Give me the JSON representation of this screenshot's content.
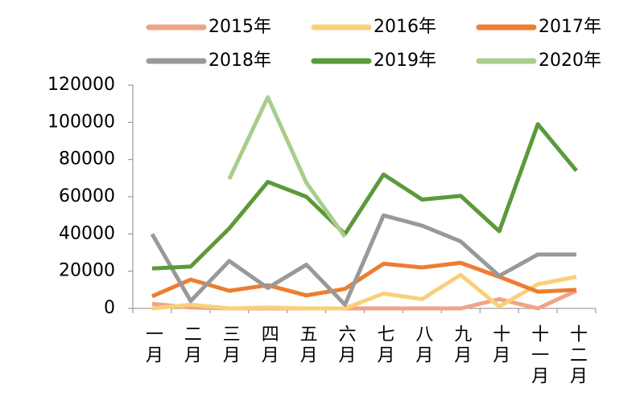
{
  "chart_data": {
    "type": "line",
    "categories": [
      "一月",
      "二月",
      "三月",
      "四月",
      "五月",
      "六月",
      "七月",
      "八月",
      "九月",
      "十月",
      "十一月",
      "十二月"
    ],
    "series": [
      {
        "name": "2015年",
        "color": "#f0a486",
        "values": [
          2500,
          500,
          0,
          0,
          0,
          0,
          0,
          0,
          0,
          5000,
          0,
          9500
        ]
      },
      {
        "name": "2016年",
        "color": "#f9d07a",
        "values": [
          0,
          2000,
          0,
          500,
          0,
          0,
          8000,
          5000,
          18000,
          1000,
          13000,
          17000
        ]
      },
      {
        "name": "2017年",
        "color": "#ed7d31",
        "values": [
          6500,
          15500,
          9500,
          12500,
          7000,
          10500,
          24000,
          22000,
          24500,
          17000,
          9000,
          10000
        ]
      },
      {
        "name": "2018年",
        "color": "#999999",
        "values": [
          40000,
          4000,
          25500,
          11000,
          23500,
          2000,
          50000,
          44500,
          36000,
          17500,
          29000,
          29000
        ]
      },
      {
        "name": "2019年",
        "color": "#5b9a3a",
        "values": [
          21500,
          22500,
          43000,
          68000,
          60000,
          40000,
          72000,
          58500,
          60500,
          41500,
          99000,
          74000
        ]
      },
      {
        "name": "2020年",
        "color": "#a9cd8c",
        "values": [
          null,
          null,
          69500,
          113500,
          67500,
          38500,
          null,
          null,
          null,
          null,
          null,
          null
        ]
      }
    ],
    "ylim": [
      0,
      120000
    ],
    "yticks": [
      0,
      20000,
      40000,
      60000,
      80000,
      100000,
      120000
    ]
  }
}
